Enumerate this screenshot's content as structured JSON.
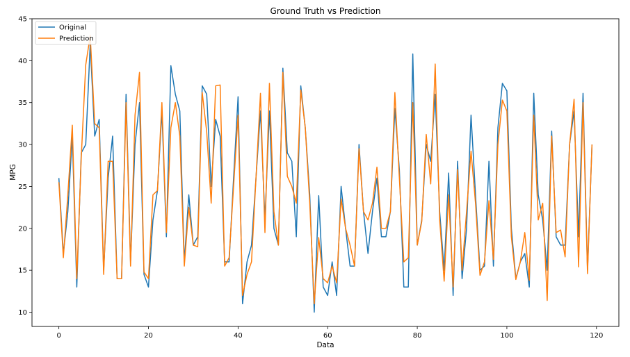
{
  "chart_data": {
    "type": "line",
    "title": "Ground Truth vs Prediction",
    "xlabel": "Data",
    "ylabel": "MPG",
    "xlim": [
      -6,
      125
    ],
    "ylim": [
      8.3,
      45
    ],
    "xticks": [
      0,
      20,
      40,
      60,
      80,
      100,
      120
    ],
    "yticks": [
      10,
      15,
      20,
      25,
      30,
      35,
      40,
      45
    ],
    "grid": false,
    "legend_position": "top-left",
    "series": [
      {
        "name": "Original",
        "color": "#1f77b4",
        "values": [
          26,
          17,
          22,
          31,
          13,
          29,
          30,
          42,
          31,
          33,
          15,
          26,
          31,
          14,
          14,
          36,
          16,
          30,
          35,
          14.5,
          13,
          21,
          24.5,
          34,
          19,
          39.4,
          36,
          34,
          16,
          24,
          18,
          19,
          37,
          36,
          25,
          33,
          31,
          16,
          16,
          26,
          35.7,
          11,
          16,
          18,
          26,
          34,
          21,
          34,
          20,
          18,
          39.1,
          29,
          28,
          19,
          37,
          32,
          24,
          10,
          23.9,
          13,
          12,
          16,
          12,
          25,
          20,
          15.5,
          15.5,
          30,
          22,
          17,
          22,
          26,
          19,
          19,
          22,
          34.3,
          27,
          13,
          13,
          40.8,
          18,
          21,
          30,
          28,
          36,
          22,
          15,
          26.6,
          12,
          28,
          14,
          20,
          33.5,
          24,
          15,
          15.5,
          28,
          15.5,
          32,
          37.3,
          36.4,
          20,
          14,
          16,
          17,
          13,
          36.1,
          24,
          21,
          15,
          31.6,
          19,
          18,
          18,
          30,
          34,
          19,
          36.1,
          15,
          30
        ]
      },
      {
        "name": "Prediction",
        "color": "#ff7f0e",
        "values": [
          25.5,
          16.5,
          24,
          32.3,
          14,
          28.5,
          39.5,
          43,
          32.5,
          32,
          14.5,
          28,
          28,
          14,
          14,
          35,
          15.5,
          33.5,
          38.6,
          14.8,
          14,
          24,
          24.5,
          35,
          19.5,
          32,
          35,
          31,
          15.5,
          22.5,
          18,
          17.8,
          36.2,
          31.5,
          23,
          37,
          37.1,
          15.5,
          16.5,
          25,
          33.5,
          12,
          14.5,
          16,
          26,
          36.1,
          19.5,
          37.3,
          22,
          18,
          38.6,
          26.2,
          25,
          23,
          36.5,
          32,
          23,
          11,
          18.9,
          14,
          13.5,
          15.5,
          13.5,
          23.5,
          20,
          18,
          15.5,
          29.5,
          22,
          21,
          23,
          27.3,
          20,
          20,
          22,
          36.2,
          26,
          16,
          16.5,
          35,
          18,
          20.8,
          31.2,
          25.3,
          39.6,
          21,
          13.7,
          24,
          13,
          27,
          15,
          22,
          29.2,
          23,
          14.4,
          16,
          23.3,
          16.3,
          30,
          35.3,
          34,
          19,
          13.9,
          16,
          19.5,
          13.8,
          33.5,
          21,
          23,
          11.4,
          31,
          19.5,
          19.8,
          16.6,
          30,
          35.4,
          15.4,
          35,
          14.6,
          30
        ]
      }
    ]
  }
}
